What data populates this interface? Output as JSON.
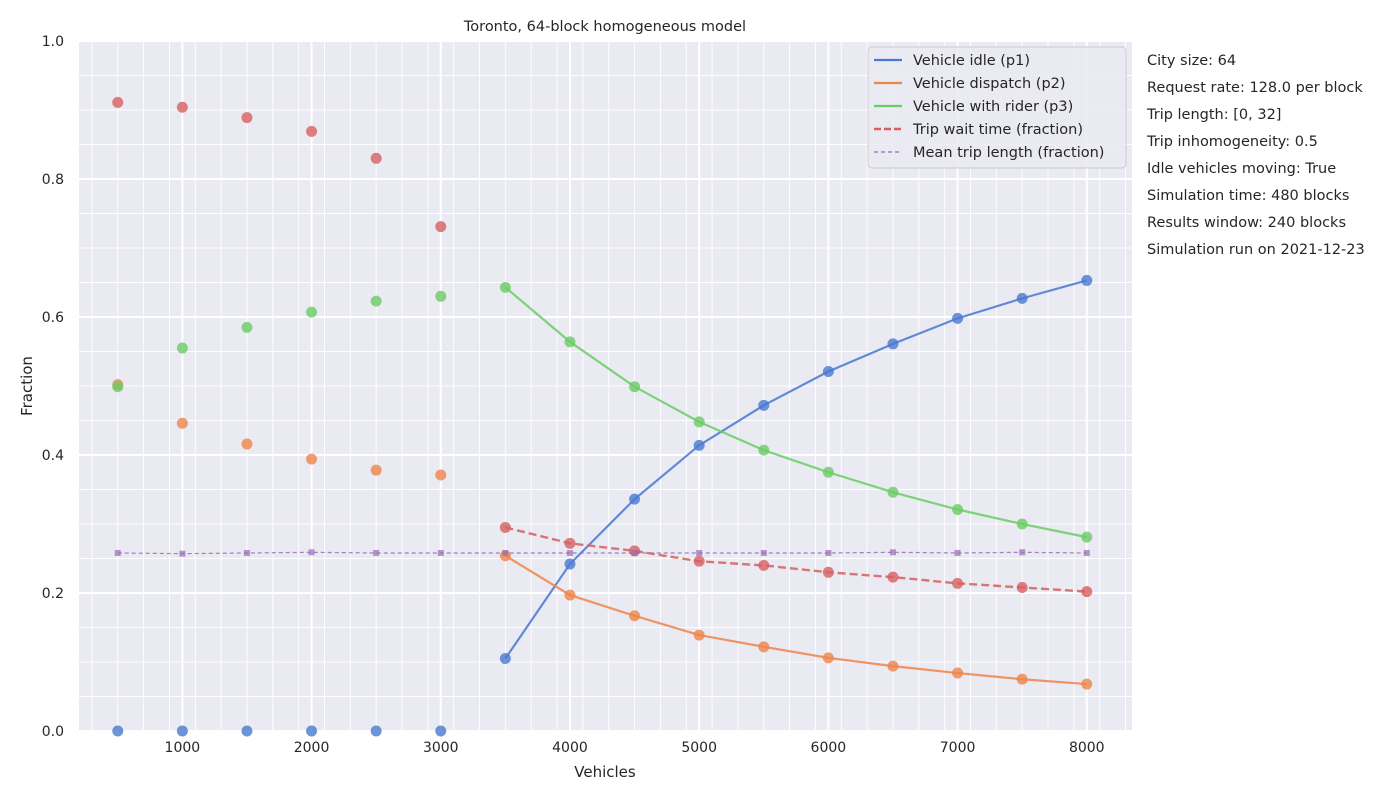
{
  "chart_data": {
    "type": "line",
    "title": "Toronto, 64-block homogeneous model",
    "xlabel": "Vehicles",
    "ylabel": "Fraction",
    "xlim": [
      200,
      8350
    ],
    "ylim": [
      0,
      1
    ],
    "xticks": [
      1000,
      2000,
      3000,
      4000,
      5000,
      6000,
      7000,
      8000
    ],
    "yticks": [
      0.0,
      0.2,
      0.4,
      0.6,
      0.8,
      1.0
    ],
    "grid": true,
    "legend_position": "top-right",
    "x": [
      500,
      1000,
      1500,
      2000,
      2500,
      3000,
      3500,
      4000,
      4500,
      5000,
      5500,
      6000,
      6500,
      7000,
      7500,
      8000
    ],
    "line_start_index": 6,
    "series": [
      {
        "name": "Vehicle idle (p1)",
        "color": "#4878d0",
        "style": "solid",
        "marker": "circle",
        "values": [
          0.0,
          0.0,
          0.0,
          0.0,
          0.0,
          0.0,
          0.105,
          0.242,
          0.336,
          0.414,
          0.472,
          0.521,
          0.561,
          0.598,
          0.627,
          0.653
        ]
      },
      {
        "name": "Vehicle dispatch (p2)",
        "color": "#ee854a",
        "style": "solid",
        "marker": "circle",
        "values": [
          0.502,
          0.446,
          0.416,
          0.394,
          0.378,
          0.371,
          0.254,
          0.197,
          0.167,
          0.139,
          0.122,
          0.106,
          0.094,
          0.084,
          0.075,
          0.068
        ]
      },
      {
        "name": "Vehicle with rider (p3)",
        "color": "#6acc64",
        "style": "solid",
        "marker": "circle",
        "values": [
          0.499,
          0.555,
          0.585,
          0.607,
          0.623,
          0.63,
          0.643,
          0.564,
          0.499,
          0.448,
          0.407,
          0.375,
          0.346,
          0.321,
          0.3,
          0.281
        ]
      },
      {
        "name": "Trip wait time (fraction)",
        "color": "#d65f5f",
        "style": "dashed",
        "marker": "circle",
        "values": [
          0.911,
          0.904,
          0.889,
          0.869,
          0.83,
          0.731,
          0.295,
          0.272,
          0.261,
          0.246,
          0.24,
          0.23,
          0.223,
          0.214,
          0.208,
          0.202
        ]
      },
      {
        "name": "Mean trip length (fraction)",
        "color": "#956cb4",
        "style": "dashed-thin",
        "marker": "square",
        "values": [
          0.258,
          0.257,
          0.258,
          0.259,
          0.258,
          0.258,
          0.258,
          0.258,
          0.258,
          0.258,
          0.258,
          0.258,
          0.259,
          0.258,
          0.259,
          0.258
        ]
      }
    ]
  },
  "sidebar": {
    "city_size": "City size: 64",
    "request_rate": "Request rate: 128.0 per block",
    "trip_length": "Trip length: [0, 32]",
    "trip_inhomogeneity": "Trip inhomogeneity: 0.5",
    "idle_moving": "Idle vehicles moving: True",
    "simulation_time": "Simulation time: 480 blocks",
    "results_window": "Results window: 240 blocks",
    "run_date": "Simulation run on 2021-12-23"
  },
  "colors": {
    "plot_background": "#eaeaf2",
    "grid": "#ffffff",
    "text": "#262626"
  }
}
